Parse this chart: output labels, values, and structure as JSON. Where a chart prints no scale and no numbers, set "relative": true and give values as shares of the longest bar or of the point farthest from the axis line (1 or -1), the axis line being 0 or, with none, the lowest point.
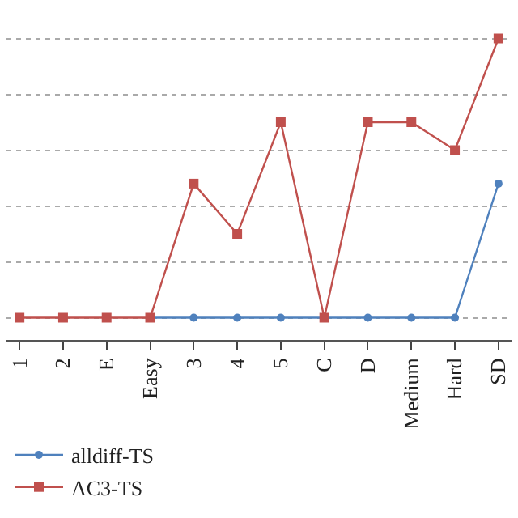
{
  "chart_data": {
    "type": "line",
    "relative": true,
    "categories": [
      "1",
      "2",
      "E",
      "Easy",
      "3",
      "4",
      "5",
      "C",
      "D",
      "Medium",
      "Hard",
      "SD"
    ],
    "series": [
      {
        "name": "alldiff-TS",
        "color": "#4f81bd",
        "marker": "circle",
        "values": [
          null,
          null,
          null,
          0,
          0,
          0,
          0,
          0,
          0,
          0,
          0,
          0.48
        ]
      },
      {
        "name": "AC3-TS",
        "color": "#c0504d",
        "marker": "square",
        "values": [
          0,
          0,
          0,
          0,
          0.48,
          0.3,
          0.7,
          0,
          0.7,
          0.7,
          0.6,
          1
        ]
      }
    ],
    "grid": "y",
    "legend": "bottom left",
    "line_style": "solid"
  }
}
